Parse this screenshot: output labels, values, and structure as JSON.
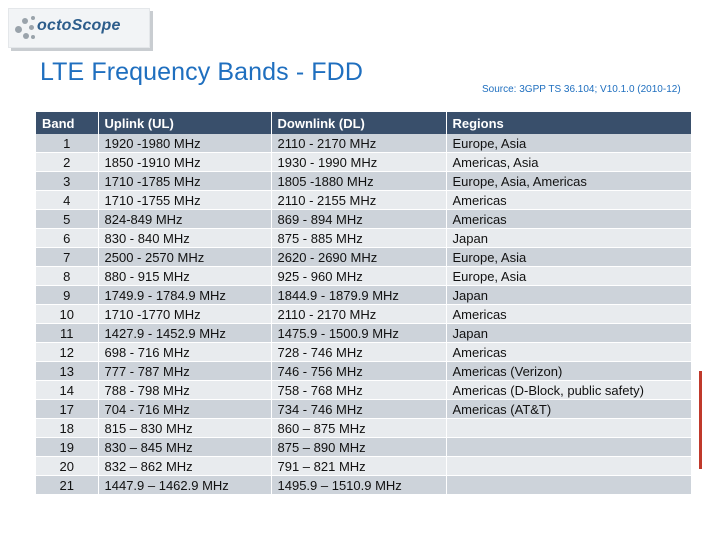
{
  "logo": {
    "brand_part1": "octo",
    "brand_part2": "Scope",
    "icon": "dot-cluster-icon"
  },
  "slide": {
    "title": "LTE Frequency Bands - FDD",
    "source": "Source:  3GPP TS 36.104; V10.1.0 (2010-12)"
  },
  "table": {
    "headers": [
      "Band",
      "Uplink (UL)",
      "Downlink (DL)",
      "Regions"
    ],
    "rows": [
      [
        "1",
        "1920 -1980 MHz",
        "2110 - 2170 MHz",
        "Europe, Asia"
      ],
      [
        "2",
        "1850 -1910 MHz",
        "1930 - 1990 MHz",
        "Americas, Asia"
      ],
      [
        "3",
        "1710 -1785 MHz",
        "1805 -1880 MHz",
        "Europe, Asia, Americas"
      ],
      [
        "4",
        "1710 -1755 MHz",
        "2110 - 2155 MHz",
        "Americas"
      ],
      [
        "5",
        "824-849 MHz",
        "869 - 894 MHz",
        "Americas"
      ],
      [
        "6",
        "830 - 840  MHz",
        "875 - 885 MHz",
        "Japan"
      ],
      [
        "7",
        "2500 - 2570 MHz",
        "2620 - 2690 MHz",
        "Europe, Asia"
      ],
      [
        "8",
        "880 - 915 MHz",
        "925 - 960 MHz",
        "Europe, Asia"
      ],
      [
        "9",
        "1749.9 - 1784.9 MHz",
        "1844.9 - 1879.9 MHz",
        "Japan"
      ],
      [
        "10",
        "1710 -1770 MHz",
        "2110 - 2170 MHz",
        "Americas"
      ],
      [
        "11",
        "1427.9 - 1452.9 MHz",
        "1475.9 - 1500.9 MHz",
        "Japan"
      ],
      [
        "12",
        "698 - 716 MHz",
        "728 - 746 MHz",
        "Americas"
      ],
      [
        "13",
        "777 - 787 MHz",
        "746 - 756 MHz",
        "Americas (Verizon)"
      ],
      [
        "14",
        "788 - 798 MHz",
        "758 - 768 MHz",
        "Americas (D-Block, public safety)"
      ],
      [
        "17",
        "704 - 716 MHz",
        "734 - 746 MHz",
        "Americas (AT&T)"
      ],
      [
        "18",
        "815 – 830 MHz",
        "860 – 875 MHz",
        ""
      ],
      [
        "19",
        "830 – 845 MHz",
        "875 – 890 MHz",
        ""
      ],
      [
        "20",
        "832 – 862 MHz",
        "791 – 821 MHz",
        ""
      ],
      [
        "21",
        "1447.9 – 1462.9 MHz",
        "1495.9 – 1510.9 MHz",
        ""
      ]
    ]
  },
  "colors": {
    "header_bg": "#394f6b",
    "row_dark": "#cdd3da",
    "row_light": "#e8ebee",
    "title": "#1f6fbf",
    "accent_mark": "#c0392b"
  }
}
